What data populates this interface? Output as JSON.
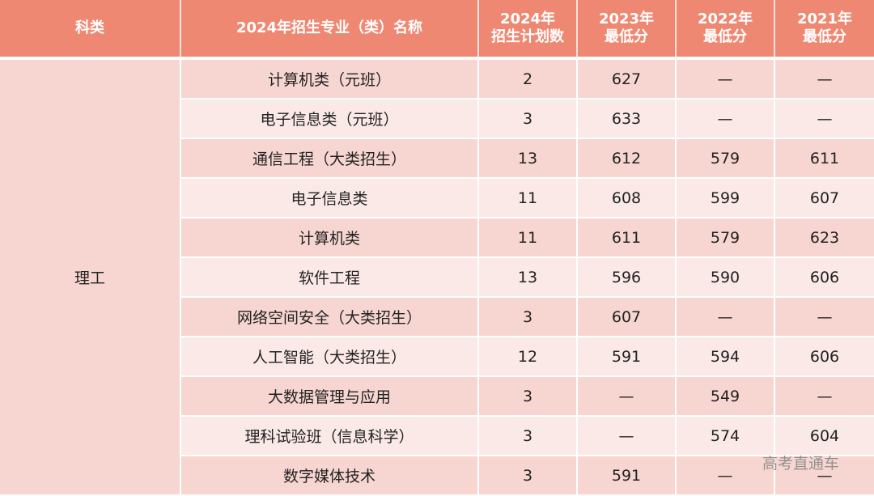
{
  "table": {
    "headers": [
      {
        "line1": "科类",
        "line2": ""
      },
      {
        "line1": "2024年招生专业（类）名称",
        "line2": ""
      },
      {
        "line1": "2024年",
        "line2": "招生计划数"
      },
      {
        "line1": "2023年",
        "line2": "最低分"
      },
      {
        "line1": "2022年",
        "line2": "最低分"
      },
      {
        "line1": "2021年",
        "line2": "最低分"
      }
    ],
    "category": "理工",
    "rows": [
      {
        "name": "计算机类（元班）",
        "plan": "2",
        "y2023": "627",
        "y2022": "—",
        "y2021": "—"
      },
      {
        "name": "电子信息类（元班）",
        "plan": "3",
        "y2023": "633",
        "y2022": "—",
        "y2021": "—"
      },
      {
        "name": "通信工程（大类招生）",
        "plan": "13",
        "y2023": "612",
        "y2022": "579",
        "y2021": "611"
      },
      {
        "name": "电子信息类",
        "plan": "11",
        "y2023": "608",
        "y2022": "599",
        "y2021": "607"
      },
      {
        "name": "计算机类",
        "plan": "11",
        "y2023": "611",
        "y2022": "579",
        "y2021": "623"
      },
      {
        "name": "软件工程",
        "plan": "13",
        "y2023": "596",
        "y2022": "590",
        "y2021": "606"
      },
      {
        "name": "网络空间安全（大类招生）",
        "plan": "3",
        "y2023": "607",
        "y2022": "—",
        "y2021": "—"
      },
      {
        "name": "人工智能（大类招生）",
        "plan": "12",
        "y2023": "591",
        "y2022": "594",
        "y2021": "606"
      },
      {
        "name": "大数据管理与应用",
        "plan": "3",
        "y2023": "—",
        "y2022": "549",
        "y2021": "—"
      },
      {
        "name": "理科试验班（信息科学）",
        "plan": "3",
        "y2023": "—",
        "y2022": "574",
        "y2021": "604"
      },
      {
        "name": "数字媒体技术",
        "plan": "3",
        "y2023": "591",
        "y2022": "—",
        "y2021": "—"
      }
    ]
  },
  "watermark": "高考直通车",
  "colors": {
    "header_bg": "#ef8872",
    "row_dark": "#f7d6d1",
    "row_light": "#fbe9e7"
  }
}
